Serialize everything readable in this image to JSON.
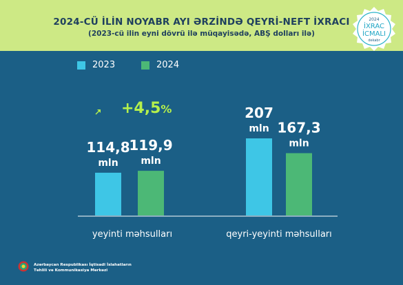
{
  "header": {
    "title": "2024-CÜ İLİN NOYABR AYI ƏRZİNDƏ QEYRİ-NEFT İXRACI",
    "subtitle": "(2023-cü ilin eyni dövrü ilə müqayisədə, ABŞ dolları ilə)"
  },
  "badge": {
    "year": "2024",
    "line1": "İXRAC",
    "line2": "İCMALI",
    "month": "dekabr"
  },
  "growth": {
    "value": "+4,5",
    "unit": "%"
  },
  "footer": {
    "org_line1": "Azərbaycan Respublikası İqtisadi İslahatların",
    "org_line2": "Təhlili və Kommunikasiya Mərkəzi"
  },
  "colors": {
    "header_bg": "#cde985",
    "page_bg": "#1b5f86",
    "series_2023": "#3ec6e6",
    "series_2024": "#4cb876",
    "growth": "#b6f04b",
    "title": "#1e3f5e"
  },
  "chart_data": {
    "type": "bar",
    "categories": [
      "yeyinti məhsulları",
      "qeyri-yeyinti məhsulları"
    ],
    "series": [
      {
        "name": "2023",
        "values": [
          114.8,
          207
        ],
        "labels": [
          "114,8",
          "207"
        ]
      },
      {
        "name": "2024",
        "values": [
          119.9,
          167.3
        ],
        "labels": [
          "119,9",
          "167,3"
        ]
      }
    ],
    "value_unit": "mln",
    "legend_position": "top-left",
    "grid": false,
    "ylim": [
      0,
      207
    ]
  }
}
